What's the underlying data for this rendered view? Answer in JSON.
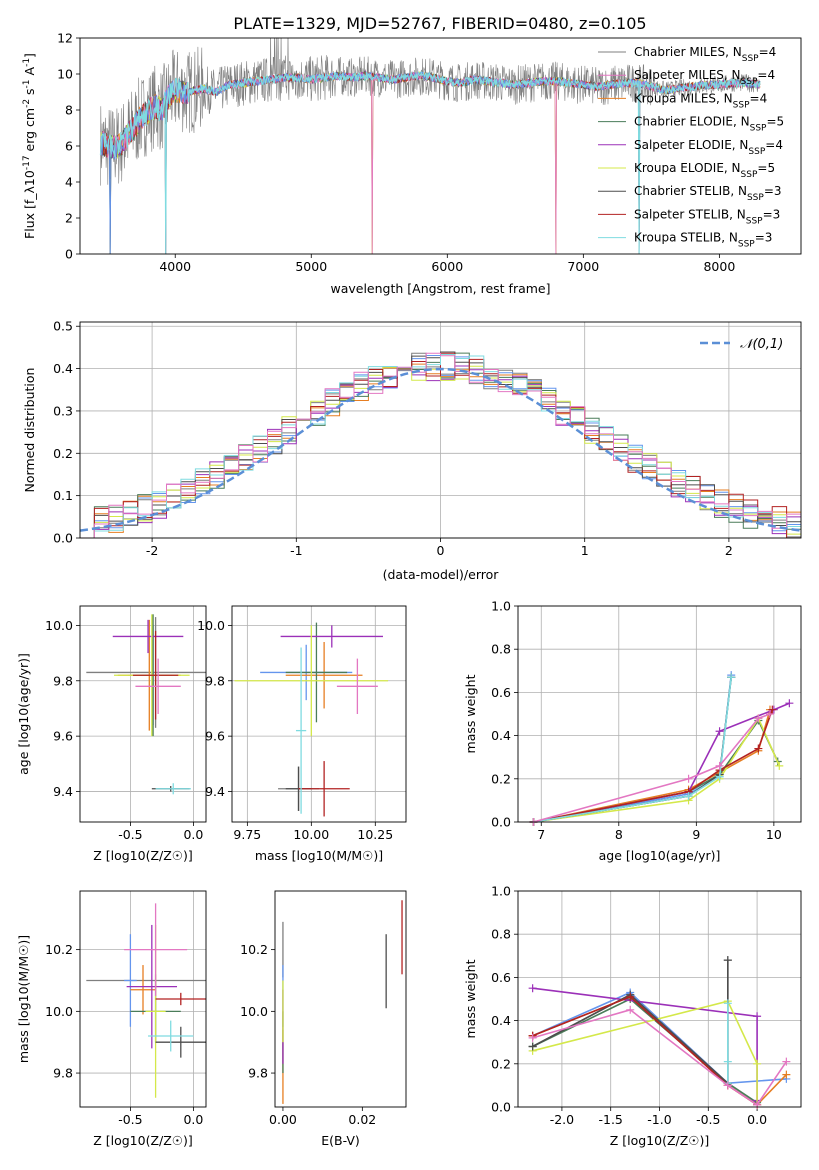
{
  "title": "PLATE=1329, MJD=52767, FIBERID=0480, z=0.105",
  "colors": {
    "c0": "#7f7f7f",
    "c1": "#6495ed",
    "c2": "#e67e22",
    "c3": "#4a7c59",
    "c4": "#9b30b8",
    "c5": "#d4e84a",
    "c6": "#4d4d4d",
    "c7": "#b22222",
    "c8": "#7fdbe0",
    "c9": "#e377c2"
  },
  "legend": [
    "Chabrier MILES, N_{SSP}=4",
    "Salpeter MILES, N_{SSP}=4",
    "Kroupa MILES, N_{SSP}=4",
    "Chabrier ELODIE, N_{SSP}=5",
    "Salpeter ELODIE, N_{SSP}=4",
    "Kroupa ELODIE, N_{SSP}=5",
    "Chabrier STELIB, N_{SSP}=3",
    "Salpeter STELIB, N_{SSP}=3",
    "Kroupa STELIB, N_{SSP}=3"
  ],
  "chart_data": [
    {
      "type": "line",
      "xlabel": "wavelength [Angstrom, rest frame]",
      "ylabel": "Flux [f_λ10^{-17} erg cm^{-2} s^{-1} A^{-1}]",
      "xlim": [
        3300,
        8600
      ],
      "ylim": [
        0,
        12
      ],
      "xticks": [
        4000,
        5000,
        6000,
        7000,
        8000
      ],
      "yticks": [
        0,
        2,
        4,
        6,
        8,
        10,
        12
      ],
      "grid": false,
      "legend_position": "upper right",
      "spectrum_approx": {
        "x": [
          3450,
          3500,
          3550,
          3600,
          3650,
          3700,
          3750,
          3800,
          3850,
          3900,
          3950,
          4000,
          4100,
          4200,
          4300,
          4400,
          4500,
          4600,
          4700,
          4800,
          4900,
          5000,
          5100,
          5200,
          5300,
          5400,
          5500,
          5600,
          5700,
          5800,
          5900,
          6000,
          6100,
          6200,
          6300,
          6400,
          6500,
          6600,
          6700,
          6800,
          6900,
          7000,
          7100,
          7200,
          7300,
          7400,
          7500,
          7600,
          7700,
          7800,
          7900,
          8000,
          8100,
          8200,
          8300
        ],
        "y": [
          6.2,
          6.0,
          5.9,
          6.1,
          6.6,
          7.1,
          7.6,
          7.9,
          8.2,
          8.0,
          8.7,
          9.1,
          9.0,
          9.2,
          9.0,
          9.4,
          9.5,
          9.6,
          9.7,
          9.8,
          9.8,
          9.7,
          9.8,
          9.9,
          9.8,
          9.9,
          9.8,
          9.7,
          9.8,
          9.9,
          9.8,
          9.6,
          9.5,
          9.7,
          9.6,
          9.5,
          9.4,
          9.5,
          9.6,
          9.6,
          9.5,
          9.4,
          9.3,
          9.4,
          9.5,
          9.5,
          9.3,
          9.1,
          9.2,
          9.3,
          9.4,
          9.4,
          9.5,
          9.5,
          9.4
        ]
      },
      "absorption_dips": [
        {
          "x": 3520,
          "y": 0
        },
        {
          "x": 3930,
          "y": 0
        },
        {
          "x": 5450,
          "y": 0
        },
        {
          "x": 6800,
          "y": 0
        },
        {
          "x": 7410,
          "y": 0
        }
      ]
    },
    {
      "type": "histogram",
      "xlabel": "(data-model)/error",
      "ylabel": "Normed distribution",
      "xlim": [
        -2.5,
        2.5
      ],
      "ylim": [
        0,
        0.51
      ],
      "xticks": [
        -2,
        -1,
        0,
        1,
        2
      ],
      "yticks": [
        0.0,
        0.1,
        0.2,
        0.3,
        0.4,
        0.5
      ],
      "grid": true,
      "bin_edges": [
        -2.5,
        -2.4,
        -2.3,
        -2.2,
        -2.1,
        -2.0,
        -1.9,
        -1.8,
        -1.7,
        -1.6,
        -1.5,
        -1.4,
        -1.3,
        -1.2,
        -1.1,
        -1.0,
        -0.9,
        -0.8,
        -0.7,
        -0.6,
        -0.5,
        -0.4,
        -0.3,
        -0.2,
        -0.1,
        0.0,
        0.1,
        0.2,
        0.3,
        0.4,
        0.5,
        0.6,
        0.7,
        0.8,
        0.9,
        1.0,
        1.1,
        1.2,
        1.3,
        1.4,
        1.5,
        1.6,
        1.7,
        1.8,
        1.9,
        2.0,
        2.1,
        2.2,
        2.3,
        2.4,
        2.5
      ],
      "normal_curve": {
        "label": "𝒩(0,1)",
        "style": "dashed",
        "color": "#5b8fd6"
      }
    },
    {
      "type": "scatter_errorbar",
      "xlabel": "Z [log10(Z/Z☉)]",
      "ylabel": "age  [log10(age/yr)]",
      "xlim": [
        -0.9,
        0.1
      ],
      "ylim": [
        9.29,
        10.07
      ],
      "xticks": [
        -0.5,
        0.0
      ],
      "yticks": [
        9.4,
        9.6,
        9.8,
        10.0
      ],
      "grid": true,
      "points": [
        {
          "x": -0.3,
          "y": 9.83,
          "xerr": 0.55,
          "yerr": 0.2
        },
        {
          "x": -0.32,
          "y": 9.82,
          "xerr": 0.2,
          "yerr": 0.18
        },
        {
          "x": -0.35,
          "y": 9.82,
          "xerr": 0.25,
          "yerr": 0.2
        },
        {
          "x": -0.32,
          "y": 9.82,
          "xerr": 0.15,
          "yerr": 0.22
        },
        {
          "x": -0.36,
          "y": 9.96,
          "xerr": 0.28,
          "yerr": 0.06
        },
        {
          "x": -0.33,
          "y": 9.82,
          "xerr": 0.3,
          "yerr": 0.22
        },
        {
          "x": -0.18,
          "y": 9.41,
          "xerr": 0.15,
          "yerr": 0.01
        },
        {
          "x": -0.3,
          "y": 9.82,
          "xerr": 0.18,
          "yerr": 0.16
        },
        {
          "x": -0.16,
          "y": 9.41,
          "xerr": 0.14,
          "yerr": 0.02
        },
        {
          "x": -0.28,
          "y": 9.78,
          "xerr": 0.18,
          "yerr": 0.1
        }
      ]
    },
    {
      "type": "scatter_errorbar",
      "xlabel": "mass [log10(M/M☉)]",
      "ylabel": "",
      "xlim": [
        9.69,
        10.37
      ],
      "ylim": [
        9.29,
        10.07
      ],
      "xticks": [
        9.75,
        10.0,
        10.25
      ],
      "yticks": [
        9.4,
        9.6,
        9.8,
        10.0
      ],
      "grid": true,
      "points": [
        {
          "x": 9.95,
          "y": 9.41,
          "xerr": 0.08,
          "yerr": 0.08
        },
        {
          "x": 9.98,
          "y": 9.83,
          "xerr": 0.18,
          "yerr": 0.1
        },
        {
          "x": 10.05,
          "y": 9.82,
          "xerr": 0.15,
          "yerr": 0.12
        },
        {
          "x": 10.02,
          "y": 9.83,
          "xerr": 0.12,
          "yerr": 0.18
        },
        {
          "x": 10.08,
          "y": 9.96,
          "xerr": 0.2,
          "yerr": 0.04
        },
        {
          "x": 10.0,
          "y": 9.8,
          "xerr": 0.3,
          "yerr": 0.2
        },
        {
          "x": 9.95,
          "y": 9.41,
          "xerr": 0.05,
          "yerr": 0.08
        },
        {
          "x": 10.05,
          "y": 9.41,
          "xerr": 0.1,
          "yerr": 0.1
        },
        {
          "x": 9.96,
          "y": 9.62,
          "xerr": 0.02,
          "yerr": 0.3
        },
        {
          "x": 10.18,
          "y": 9.78,
          "xerr": 0.08,
          "yerr": 0.1
        }
      ]
    },
    {
      "type": "line",
      "xlabel": "age  [log10(age/yr)]",
      "ylabel": "mass weight",
      "xlim": [
        6.7,
        10.35
      ],
      "ylim": [
        0,
        1
      ],
      "xticks": [
        7,
        8,
        9,
        10
      ],
      "yticks": [
        0.0,
        0.2,
        0.4,
        0.6,
        0.8,
        1.0
      ],
      "grid": true,
      "x_age_grid": [
        6.9,
        9.0,
        9.3,
        9.45,
        9.8,
        10.0,
        10.2
      ]
    },
    {
      "type": "scatter_errorbar",
      "xlabel": "Z [log10(Z/Z☉)]",
      "ylabel": "mass [log10(M/M☉)]",
      "xlim": [
        -0.9,
        0.1
      ],
      "ylim": [
        9.69,
        10.39
      ],
      "xticks": [
        -0.5,
        0.0
      ],
      "yticks": [
        9.8,
        10.0,
        10.2
      ],
      "grid": true,
      "points": [
        {
          "x": -0.3,
          "y": 10.1,
          "xerr": 0.55,
          "yerr": 0.02
        },
        {
          "x": -0.5,
          "y": 10.1,
          "xerr": 0.05,
          "yerr": 0.15
        },
        {
          "x": -0.4,
          "y": 10.07,
          "xerr": 0.1,
          "yerr": 0.08
        },
        {
          "x": -0.3,
          "y": 10.0,
          "xerr": 0.2,
          "yerr": 0.1
        },
        {
          "x": -0.33,
          "y": 10.08,
          "xerr": 0.2,
          "yerr": 0.2
        },
        {
          "x": -0.3,
          "y": 10.0,
          "xerr": 0.08,
          "yerr": 0.28
        },
        {
          "x": -0.1,
          "y": 9.9,
          "xerr": 0.2,
          "yerr": 0.05
        },
        {
          "x": -0.1,
          "y": 10.04,
          "xerr": 0.2,
          "yerr": 0.02
        },
        {
          "x": -0.18,
          "y": 9.92,
          "xerr": 0.18,
          "yerr": 0.05
        },
        {
          "x": -0.3,
          "y": 10.2,
          "xerr": 0.25,
          "yerr": 0.15
        }
      ]
    },
    {
      "type": "scatter_errorbar",
      "xlabel": "E(B-V)",
      "ylabel": "",
      "xlim": [
        -0.002,
        0.031
      ],
      "ylim": [
        9.69,
        10.39
      ],
      "xticks": [
        0.0,
        0.02
      ],
      "yticks": [
        9.8,
        10.0,
        10.2
      ],
      "grid": false,
      "points": [
        {
          "x": 0.0,
          "y": 10.2,
          "xerr": 0,
          "yerr": 0.09
        },
        {
          "x": 0.0,
          "y": 10.05,
          "xerr": 0,
          "yerr": 0.1
        },
        {
          "x": 0.0,
          "y": 9.82,
          "xerr": 0,
          "yerr": 0.12
        },
        {
          "x": 0.0,
          "y": 9.9,
          "xerr": 0,
          "yerr": 0.1
        },
        {
          "x": 0.0,
          "y": 9.95,
          "xerr": 0,
          "yerr": 0.12
        },
        {
          "x": 0.0,
          "y": 10.0,
          "xerr": 0,
          "yerr": 0.1
        },
        {
          "x": 0.026,
          "y": 10.13,
          "xerr": 0,
          "yerr": 0.12
        },
        {
          "x": 0.03,
          "y": 10.24,
          "xerr": 0,
          "yerr": 0.12
        }
      ]
    },
    {
      "type": "line",
      "xlabel": "Z [log10(Z/Z☉)]",
      "ylabel": "mass weight",
      "xlim": [
        -2.45,
        0.45
      ],
      "ylim": [
        0,
        1
      ],
      "xticks": [
        -2.0,
        -1.5,
        -1.0,
        -0.5,
        0.0
      ],
      "yticks": [
        0.0,
        0.2,
        0.4,
        0.6,
        0.8,
        1.0
      ],
      "grid": true
    }
  ]
}
